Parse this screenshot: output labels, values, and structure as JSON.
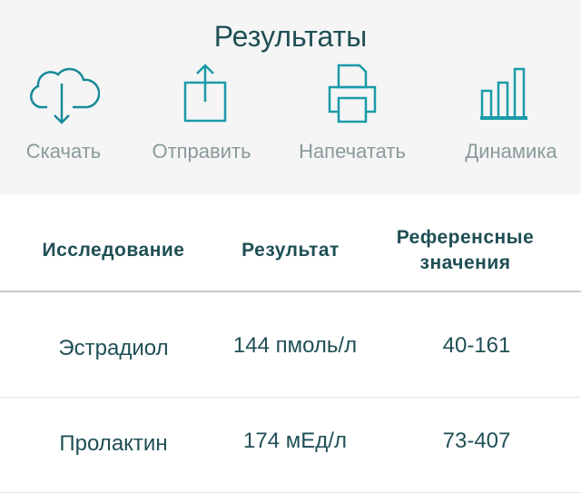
{
  "header": {
    "title": "Результаты"
  },
  "actions": [
    {
      "label": "Скачать",
      "icon": "cloud-download-icon"
    },
    {
      "label": "Отправить",
      "icon": "share-icon"
    },
    {
      "label": "Напечатать",
      "icon": "printer-icon"
    },
    {
      "label": "Динамика",
      "icon": "bar-chart-icon"
    }
  ],
  "table": {
    "headers": [
      "Исследование",
      "Результат",
      "Референсные значения"
    ],
    "rows": [
      {
        "test": "Эстрадиол",
        "result": "144 пмоль/л",
        "ref": "40-161"
      },
      {
        "test": "Пролактин",
        "result": "174 мЕд/л",
        "ref": "73-407"
      }
    ]
  },
  "colors": {
    "accent": "#1a9aa8",
    "text": "#1f4f55"
  }
}
